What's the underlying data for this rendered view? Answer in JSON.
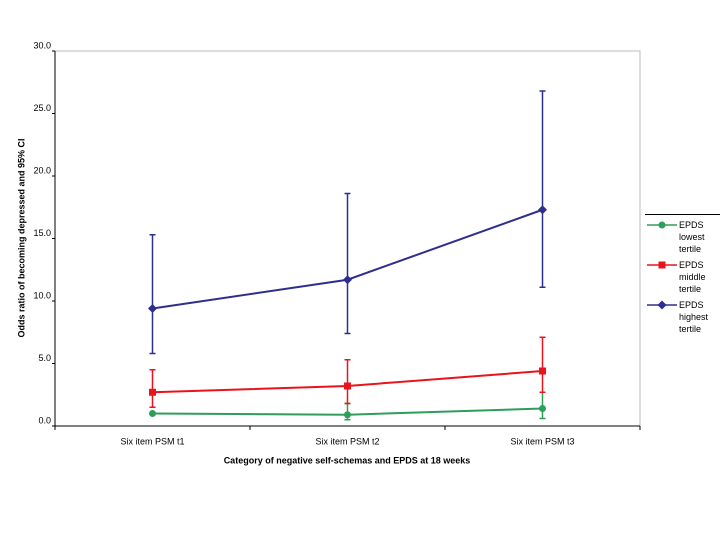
{
  "chart_data": {
    "type": "line",
    "y_label": "Odds ratio of becoming depressed and 95% CI",
    "x_label": "Category of negative self-schemas and EPDS at 18 weeks",
    "categories": [
      "Six item PSM t1",
      "Six item PSM t2",
      "Six item PSM t3"
    ],
    "series": [
      {
        "name": "EPDS lowest tertile",
        "color": "#2e9e5b",
        "marker": "circle",
        "values": [
          1.0,
          0.9,
          1.4
        ],
        "ci_low": [
          null,
          0.5,
          0.6
        ],
        "ci_high": [
          null,
          1.8,
          2.7
        ]
      },
      {
        "name": "EPDS middle tertile",
        "color": "#e8141b",
        "marker": "square",
        "values": [
          2.7,
          3.2,
          4.4
        ],
        "ci_low": [
          1.5,
          1.8,
          2.7
        ],
        "ci_high": [
          4.5,
          5.3,
          7.1
        ]
      },
      {
        "name": "EPDS highest tertile",
        "color": "#2e2f8c",
        "marker": "diamond",
        "values": [
          9.4,
          11.7,
          17.3
        ],
        "ci_low": [
          5.8,
          7.4,
          11.1
        ],
        "ci_high": [
          15.3,
          18.6,
          26.8
        ]
      }
    ],
    "ylim": [
      0,
      30
    ],
    "yticks": [
      {
        "value": 0,
        "label": "0.0"
      },
      {
        "value": 5,
        "label": "5.0"
      },
      {
        "value": 10,
        "label": "10.0"
      },
      {
        "value": 15,
        "label": "15.0"
      },
      {
        "value": 20,
        "label": "20.0"
      },
      {
        "value": 25,
        "label": "25.0"
      },
      {
        "value": 30,
        "label": "30.0"
      }
    ],
    "legend": "right"
  }
}
